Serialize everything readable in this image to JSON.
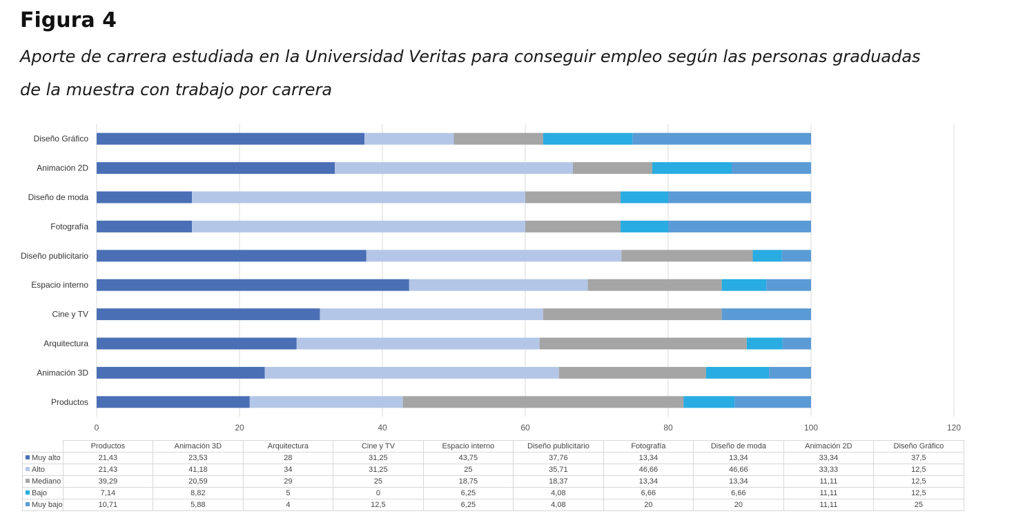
{
  "figure": {
    "label": "Figura 4",
    "caption": "Aporte de carrera estudiada en la Universidad Veritas para conseguir empleo según las personas graduadas de la muestra con trabajo por carrera"
  },
  "colors": {
    "Muy alto": "#4a6fb5",
    "Alto": "#b4c6e7",
    "Mediano": "#a5a5a5",
    "Bajo": "#28ace2",
    "Muy bajo": "#5b9bd5",
    "grid": "#d9d9d9",
    "tick_text": "#555555"
  },
  "chart_data": {
    "type": "bar",
    "orientation": "horizontal",
    "stacked": true,
    "title": "",
    "xlabel": "",
    "ylabel": "",
    "xlim": [
      0,
      120
    ],
    "x_ticks": [
      0,
      20,
      40,
      60,
      80,
      100,
      120
    ],
    "grid": "vertical gridlines",
    "categories": [
      "Productos",
      "Animación 3D",
      "Arquitectura",
      "Cine y TV",
      "Espacio interno",
      "Diseño publicitario",
      "Fotografía",
      "Diseño de moda",
      "Animación 2D",
      "Diseño Gráfico"
    ],
    "category_display_order": "bottom-to-top",
    "series": [
      {
        "name": "Muy alto",
        "values": [
          21.43,
          23.53,
          28,
          31.25,
          43.75,
          37.76,
          13.34,
          13.34,
          33.34,
          37.5
        ],
        "display": [
          "21,43",
          "23,53",
          "28",
          "31,25",
          "43,75",
          "37,76",
          "13,34",
          "13,34",
          "33,34",
          "37,5"
        ]
      },
      {
        "name": "Alto",
        "values": [
          21.43,
          41.18,
          34,
          31.25,
          25,
          35.71,
          46.66,
          46.66,
          33.33,
          12.5
        ],
        "display": [
          "21,43",
          "41,18",
          "34",
          "31,25",
          "25",
          "35,71",
          "46,66",
          "46,66",
          "33,33",
          "12,5"
        ]
      },
      {
        "name": "Mediano",
        "values": [
          39.29,
          20.59,
          29,
          25,
          18.75,
          18.37,
          13.34,
          13.34,
          11.11,
          12.5
        ],
        "display": [
          "39,29",
          "20,59",
          "29",
          "25",
          "18,75",
          "18,37",
          "13,34",
          "13,34",
          "11,11",
          "12,5"
        ]
      },
      {
        "name": "Bajo",
        "values": [
          7.14,
          8.82,
          5,
          0,
          6.25,
          4.08,
          6.66,
          6.66,
          11.11,
          12.5
        ],
        "display": [
          "7,14",
          "8,82",
          "5",
          "0",
          "6,25",
          "4,08",
          "6,66",
          "6,66",
          "11,11",
          "12,5"
        ]
      },
      {
        "name": "Muy bajo",
        "values": [
          10.71,
          5.88,
          4,
          12.5,
          6.25,
          4.08,
          20,
          20,
          11.11,
          25
        ],
        "display": [
          "10,71",
          "5,88",
          "4",
          "12,5",
          "6,25",
          "4,08",
          "20",
          "20",
          "11,11",
          "25"
        ]
      }
    ],
    "legend": "data table below chart"
  }
}
